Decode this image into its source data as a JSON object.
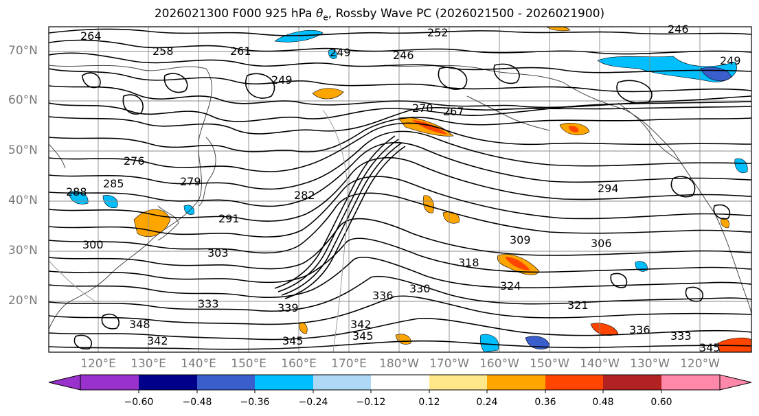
{
  "title": {
    "prefix": "2026021300 F000 925 hPa ",
    "symbol": "θ",
    "subscript": "e",
    "suffix": ", Rossby Wave PC (2026021500 - 2026021900)"
  },
  "latitude_labels": [
    "70°N",
    "60°N",
    "50°N",
    "40°N",
    "30°N",
    "20°N"
  ],
  "longitude_labels": [
    "120°E",
    "130°E",
    "140°E",
    "150°E",
    "160°E",
    "170°E",
    "180°W",
    "170°W",
    "160°W",
    "150°W",
    "140°W",
    "130°W",
    "120°W"
  ],
  "contour_labels": [
    "264",
    "261",
    "258",
    "252",
    "249",
    "246",
    "246",
    "249",
    "249",
    "270",
    "267",
    "276",
    "279",
    "288",
    "285",
    "282",
    "294",
    "291",
    "300",
    "303",
    "309",
    "306",
    "318",
    "324",
    "321",
    "330",
    "336",
    "333",
    "339",
    "342",
    "345",
    "345",
    "348",
    "336",
    "333",
    "342",
    "345"
  ],
  "colorbar": {
    "tick_labels": [
      "−0.60",
      "−0.48",
      "−0.36",
      "−0.24",
      "−0.12",
      "0.12",
      "0.24",
      "0.36",
      "0.48",
      "0.60"
    ],
    "colors": {
      "below": "#9932cc",
      "bins": [
        "#9932cc",
        "#00008b",
        "#3a5fcd",
        "#00bfff",
        "#add8f6",
        "#ffffff",
        "#ffe88a",
        "#ffa500",
        "#ff4500",
        "#b22222",
        "#ff88aa"
      ],
      "above": "#ff88aa"
    }
  },
  "shading_colors": {
    "neg_strong": "#3a5fcd",
    "neg": "#00bfff",
    "neg_weak": "#add8f6",
    "pos_weak": "#ffe88a",
    "pos": "#ffa500",
    "pos_strong": "#ff4500"
  }
}
